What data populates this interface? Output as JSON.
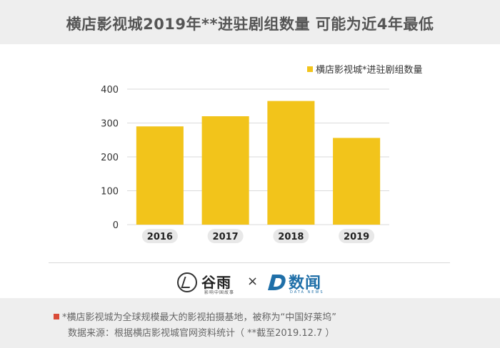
{
  "header": {
    "title": "横店影视城2019年**进驻剧组数量  可能为近4年最低"
  },
  "chart_data": {
    "type": "bar",
    "title": "",
    "xlabel": "",
    "ylabel": "",
    "categories": [
      "2016",
      "2017",
      "2018",
      "2019"
    ],
    "series": [
      {
        "name": "横店影视城*进驻剧组数量",
        "values": [
          290,
          320,
          365,
          256
        ]
      }
    ],
    "ylim": [
      0,
      400
    ],
    "yticks": [
      "0",
      "100",
      "200",
      "300",
      "400"
    ],
    "grid": true,
    "legend_position": "top-right",
    "bar_color": "#f2c41b"
  },
  "logos": {
    "guyu_name": "谷雨",
    "guyu_sub": "影响中国故事",
    "times": "×",
    "shuwen_name": "数闻",
    "shuwen_sub": "DATA NEWS"
  },
  "notes": {
    "line1": "*横店影视城为全球规模最大的影视拍摄基地，被称为“中国好莱坞”",
    "line2": "数据来源：根据横店影视城官网资料统计（ **截至2019.12.7 ）",
    "marker_color": "#d94b38"
  }
}
